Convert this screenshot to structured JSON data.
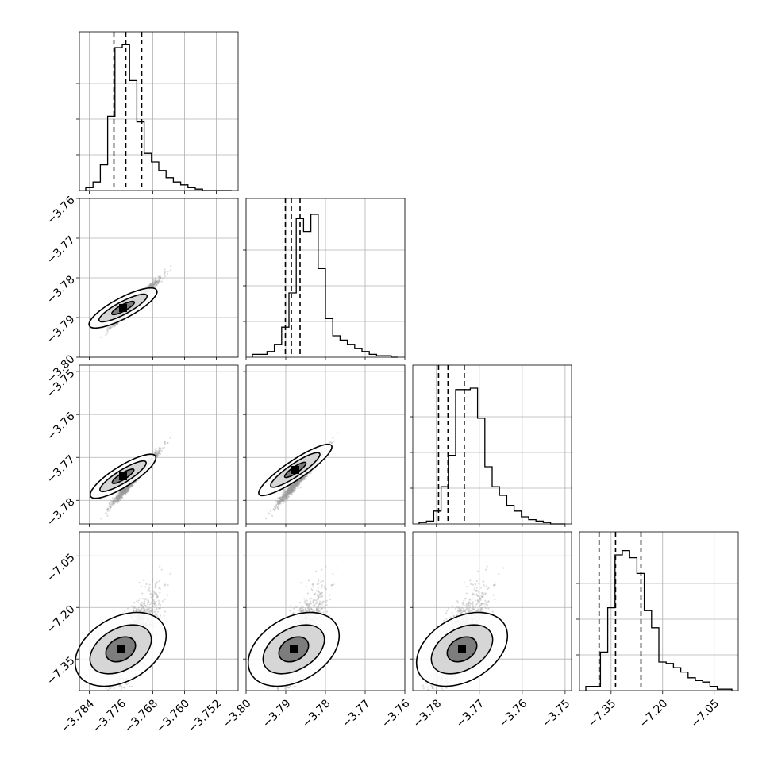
{
  "chart_data": {
    "type": "corner",
    "title": "",
    "ndim": 4,
    "grid": true,
    "axes_ticks": [
      [
        "−3.784",
        "−3.776",
        "−3.768",
        "−3.760",
        "−3.752"
      ],
      [
        "−3.80",
        "−3.79",
        "−3.78",
        "−3.77",
        "−3.76"
      ],
      [
        "−3.78",
        "−3.77",
        "−3.76",
        "−3.75"
      ],
      [
        "−7.35",
        "−7.20",
        "−7.05"
      ]
    ],
    "axes": [
      {
        "range": [
          -3.7865,
          -3.7465
        ],
        "ticks": [
          -3.784,
          -3.776,
          -3.768,
          -3.76,
          -3.752
        ]
      },
      {
        "range": [
          -3.8,
          -3.76
        ],
        "ticks": [
          -3.8,
          -3.79,
          -3.78,
          -3.77,
          -3.76
        ]
      },
      {
        "range": [
          -3.7855,
          -3.7485
        ],
        "ticks": [
          -3.78,
          -3.77,
          -3.76,
          -3.75
        ]
      },
      {
        "range": [
          -7.442,
          -6.98
        ],
        "ticks": [
          -7.35,
          -7.2,
          -7.05
        ]
      }
    ],
    "quantiles": [
      [
        -3.7778,
        -3.7748,
        -3.7708
      ],
      [
        -3.7901,
        -3.7886,
        -3.7864
      ],
      [
        -3.7795,
        -3.7773,
        -3.7735
      ],
      [
        -7.385,
        -7.337,
        -7.263
      ]
    ],
    "histograms": [
      [
        0.02,
        0.06,
        0.18,
        0.52,
        1.0,
        1.02,
        0.77,
        0.48,
        0.26,
        0.2,
        0.14,
        0.09,
        0.06,
        0.04,
        0.02,
        0.01,
        0,
        0,
        0,
        0
      ],
      [
        0.02,
        0.02,
        0.04,
        0.09,
        0.21,
        0.45,
        0.97,
        0.88,
        1.0,
        0.62,
        0.27,
        0.15,
        0.12,
        0.09,
        0.06,
        0.04,
        0.02,
        0.01,
        0.01,
        0
      ],
      [
        0.01,
        0.02,
        0.09,
        0.26,
        0.48,
        0.94,
        0.94,
        0.95,
        0.74,
        0.4,
        0.26,
        0.2,
        0.13,
        0.09,
        0.05,
        0.03,
        0.02,
        0.01,
        0,
        0
      ],
      [
        0.03,
        0.03,
        0.27,
        0.58,
        0.95,
        0.98,
        0.93,
        0.82,
        0.56,
        0.44,
        0.2,
        0.19,
        0.16,
        0.13,
        0.09,
        0.07,
        0.06,
        0.03,
        0.01,
        0.01
      ]
    ]
  }
}
